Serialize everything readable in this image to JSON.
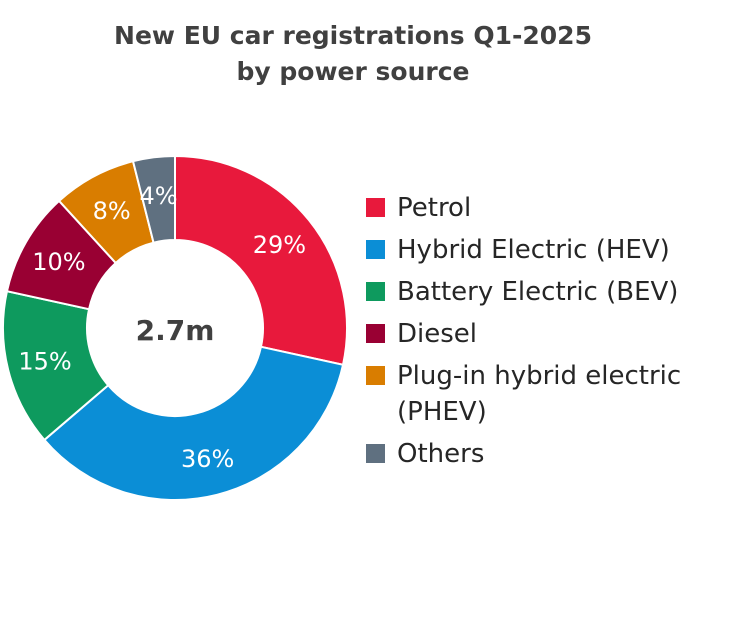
{
  "chart_data": {
    "type": "pie",
    "title": "New EU car registrations Q1-2025",
    "subtitle": "by power source",
    "center_label": "2.7m",
    "categories": [
      "Petrol",
      "Hybrid Electric (HEV)",
      "Battery Electric (BEV)",
      "Diesel",
      "Plug-in hybrid electric (PHEV)",
      "Others"
    ],
    "values": [
      29,
      36,
      15,
      10,
      8,
      4
    ],
    "data_labels": [
      "29%",
      "36%",
      "15%",
      "10%",
      "8%",
      "4%"
    ],
    "colors": [
      "#E8193C",
      "#0B8ED6",
      "#0E9A5E",
      "#990033",
      "#D97D00",
      "#5F7080"
    ],
    "legend_position": "right",
    "donut": true
  }
}
